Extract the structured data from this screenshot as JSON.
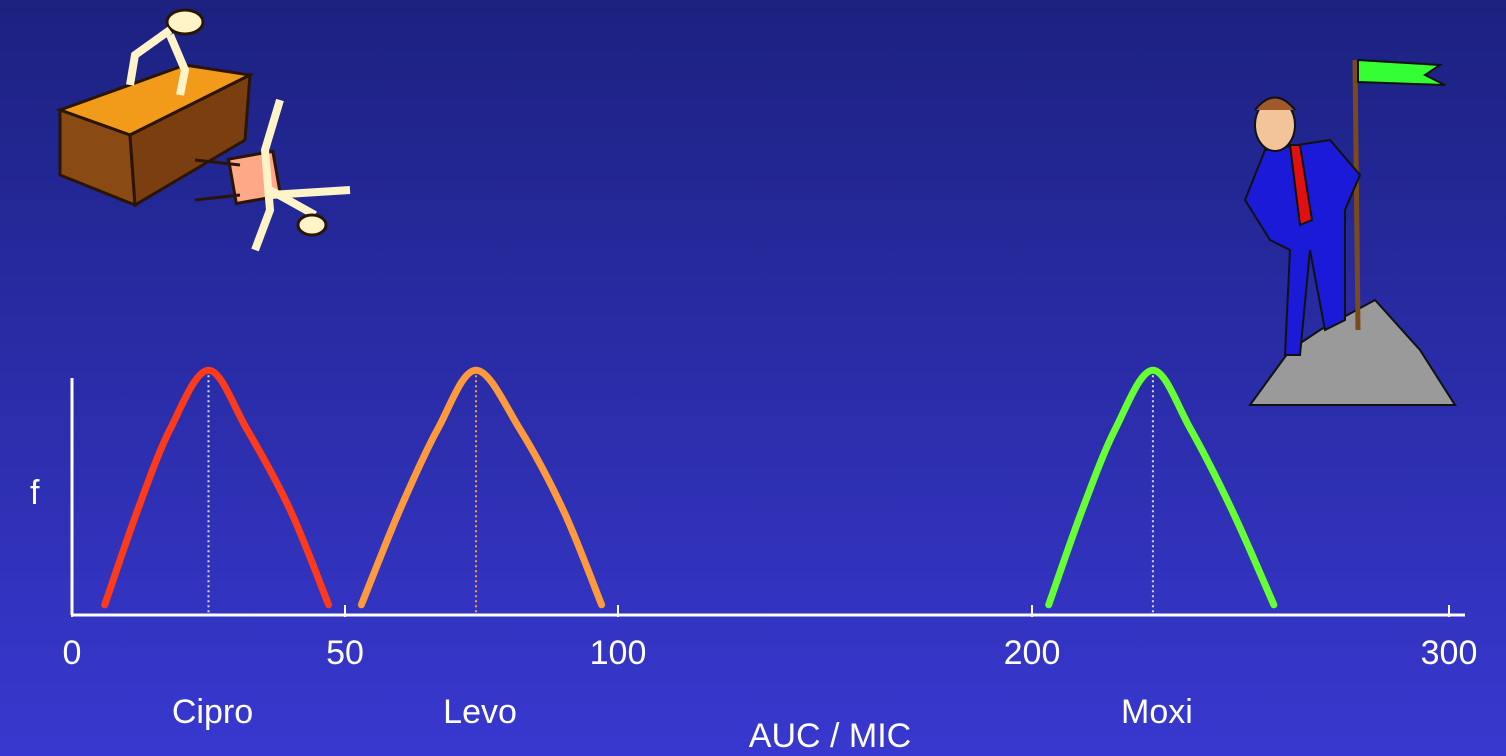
{
  "chart_data": {
    "type": "line",
    "x_label": "AUC / MIC",
    "y_label": "f",
    "xlim": [
      0,
      300
    ],
    "xticks": [
      0,
      50,
      100,
      200,
      300
    ],
    "ylim": [
      0,
      1
    ],
    "series": [
      {
        "name": "Cipro",
        "color": "#ff3a1a",
        "peak_line_color": "#d8d8d8",
        "x": [
          6,
          12,
          18,
          25,
          32,
          40,
          47
        ],
        "values": [
          0.04,
          0.41,
          0.73,
          0.96,
          0.73,
          0.41,
          0.04
        ]
      },
      {
        "name": "Levo",
        "color": "#ff9a3c",
        "peak_line_color": "#ff9a3c",
        "x": [
          53,
          60,
          67,
          74,
          82,
          90,
          97
        ],
        "values": [
          0.04,
          0.41,
          0.73,
          0.96,
          0.73,
          0.41,
          0.04
        ]
      },
      {
        "name": "Moxi",
        "color": "#66ff33",
        "peak_line_color": "#d8d8d8",
        "x": [
          204,
          212,
          220,
          229,
          238,
          248,
          258
        ],
        "values": [
          0.04,
          0.41,
          0.73,
          0.96,
          0.73,
          0.41,
          0.04
        ]
      }
    ]
  }
}
